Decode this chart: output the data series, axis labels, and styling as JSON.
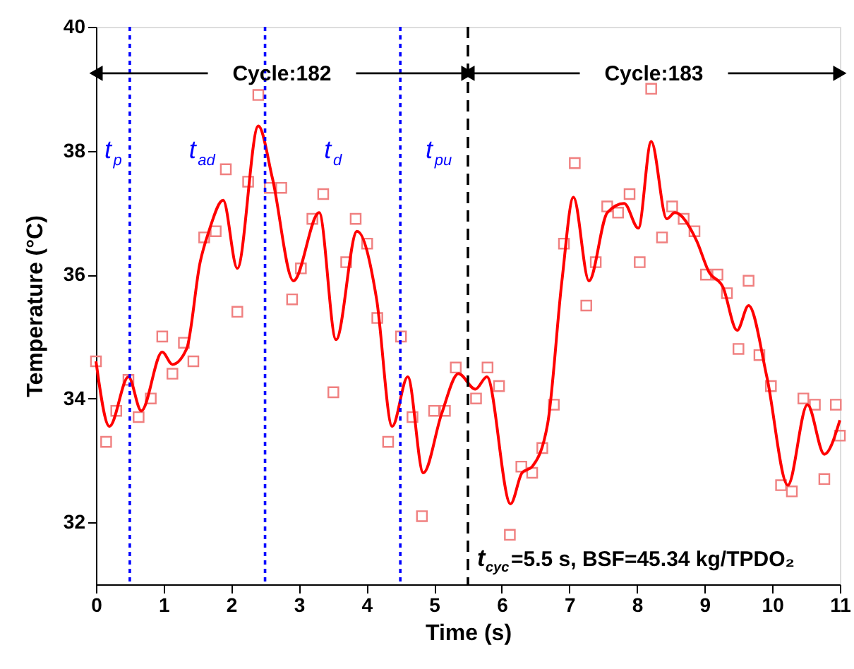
{
  "chart_data": {
    "type": "scatter",
    "xlabel": "Time (s)",
    "ylabel": "Temperature (°C)",
    "xlim": [
      0,
      11
    ],
    "xticks": [
      0,
      1,
      2,
      3,
      4,
      5,
      6,
      7,
      8,
      9,
      10,
      11
    ],
    "ylim": [
      31,
      40
    ],
    "yticks": [
      32,
      34,
      36,
      38,
      40
    ],
    "grid": false,
    "series": [
      {
        "marker": "square",
        "color": "#f08080",
        "x": [
          0,
          0.15,
          0.3,
          0.48,
          0.63,
          0.81,
          0.98,
          1.13,
          1.3,
          1.44,
          1.6,
          1.77,
          1.92,
          2.09,
          2.25,
          2.4,
          2.57,
          2.74,
          2.9,
          3.03,
          3.2,
          3.36,
          3.51,
          3.7,
          3.84,
          4.01,
          4.16,
          4.32,
          4.51,
          4.68,
          4.82,
          5.0,
          5.16,
          5.32,
          5.62,
          5.79,
          5.96,
          6.12,
          6.29,
          6.45,
          6.6,
          6.77,
          6.92,
          7.08,
          7.25,
          7.39,
          7.56,
          7.72,
          7.89,
          8.04,
          8.21,
          8.37,
          8.52,
          8.69,
          8.85,
          9.02,
          9.19,
          9.33,
          9.5,
          9.65,
          9.81,
          9.98,
          10.13,
          10.29,
          10.46,
          10.63,
          10.77,
          10.94,
          11.0
        ],
        "values": [
          34.6,
          33.3,
          33.8,
          34.3,
          33.7,
          34.0,
          35.0,
          34.4,
          34.9,
          34.6,
          36.6,
          36.7,
          37.7,
          35.4,
          37.5,
          38.9,
          37.4,
          37.4,
          35.6,
          36.1,
          36.9,
          37.3,
          34.1,
          36.2,
          36.9,
          36.5,
          35.3,
          33.3,
          35.0,
          33.7,
          32.1,
          33.8,
          33.8,
          34.5,
          34.0,
          34.5,
          34.2,
          31.8,
          32.9,
          32.8,
          33.2,
          33.9,
          36.5,
          37.8,
          35.5,
          36.2,
          37.1,
          37.0,
          37.3,
          36.2,
          39.0,
          36.6,
          37.1,
          36.9,
          36.7,
          36.0,
          36.0,
          35.7,
          34.8,
          35.9,
          34.7,
          34.2,
          32.6,
          32.5,
          34.0,
          33.9,
          32.7,
          33.9,
          33.4
        ]
      },
      {
        "type": "line",
        "marker": "none",
        "line_style": "solid",
        "color": "#ff0000",
        "x": [
          0,
          0.2,
          0.48,
          0.67,
          0.98,
          1.13,
          1.34,
          1.54,
          1.67,
          1.88,
          2.09,
          2.4,
          2.61,
          2.92,
          3.3,
          3.55,
          3.86,
          4.15,
          4.38,
          4.61,
          4.84,
          5.11,
          5.36,
          5.61,
          5.78,
          6.13,
          6.3,
          6.45,
          6.68,
          6.89,
          7.06,
          7.29,
          7.56,
          7.81,
          8.02,
          8.21,
          8.44,
          8.56,
          8.88,
          9.06,
          9.27,
          9.48,
          9.65,
          9.92,
          10.23,
          10.52,
          10.77,
          11.0
        ],
        "values": [
          34.6,
          33.55,
          34.35,
          33.8,
          34.75,
          34.55,
          34.8,
          36.2,
          36.7,
          37.2,
          36.1,
          38.4,
          37.55,
          35.9,
          37.0,
          34.95,
          36.7,
          35.6,
          33.55,
          34.35,
          32.8,
          33.75,
          34.4,
          34.15,
          34.35,
          32.3,
          32.8,
          32.9,
          33.6,
          35.9,
          37.25,
          35.9,
          37.0,
          37.15,
          36.75,
          38.15,
          36.9,
          37.0,
          36.55,
          36.05,
          35.8,
          35.1,
          35.5,
          34.35,
          32.6,
          33.9,
          33.1,
          33.65
        ]
      }
    ],
    "ref_lines": [
      {
        "axis": "x",
        "value": 0.5,
        "color": "#0000ff",
        "line_style": "dotted"
      },
      {
        "axis": "x",
        "value": 2.5,
        "color": "#0000ff",
        "line_style": "dotted"
      },
      {
        "axis": "x",
        "value": 4.5,
        "color": "#0000ff",
        "line_style": "dotted"
      },
      {
        "axis": "x",
        "value": 5.5,
        "color": "#000000",
        "line_style": "dashed"
      }
    ],
    "annotations": [
      {
        "text": "Cycle:182",
        "x": 5.5,
        "y": 39.25
      },
      {
        "text": "Cycle:183",
        "x": 5.5,
        "y": 39.25
      },
      "t$_{p}$",
      "t$_{ad}$",
      "t$_{d}$",
      "t$_{pu}$",
      "t$_{cyc}$=5.5 s, BSF=45.34 kg/TPDO₂"
    ]
  }
}
